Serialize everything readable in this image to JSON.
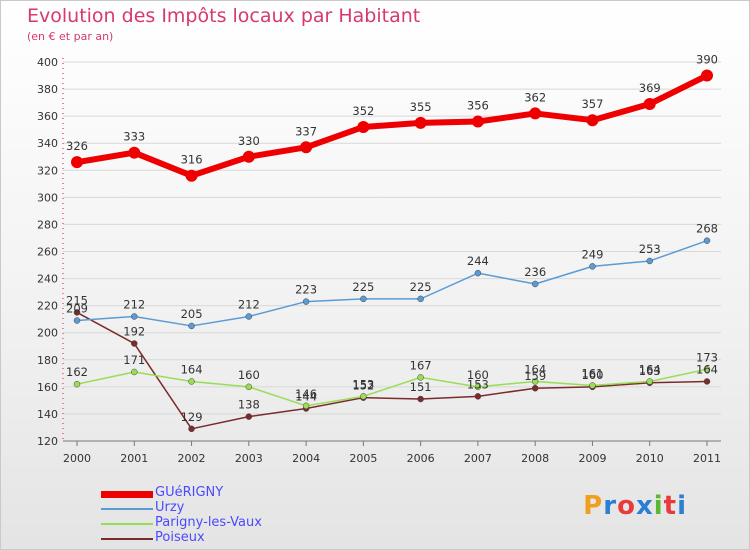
{
  "title": "Evolution des Impôts locaux par Habitant",
  "subtitle": "(en € et par an)",
  "brand": {
    "letters": [
      "P",
      "r",
      "o",
      "x",
      "i",
      "t",
      "i"
    ],
    "colors": [
      "#f0a020",
      "#2a7fd4",
      "#e83a3a",
      "#2a7fd4",
      "#5cb82e",
      "#e83a3a",
      "#2a7fd4"
    ]
  },
  "chart_data": {
    "type": "line",
    "title": "Evolution des Impôts locaux par Habitant",
    "subtitle": "(en € et par an)",
    "categories": [
      "2000",
      "2001",
      "2002",
      "2003",
      "2004",
      "2005",
      "2006",
      "2007",
      "2008",
      "2009",
      "2010",
      "2011"
    ],
    "ylim": [
      120,
      400
    ],
    "yticks": [
      "120",
      "140",
      "160",
      "180",
      "200",
      "220",
      "240",
      "260",
      "280",
      "300",
      "320",
      "340",
      "360",
      "380",
      "400"
    ],
    "grid": "horizontal",
    "legend": "bottom-left",
    "series": [
      {
        "name": "GUéRIGNY",
        "color": "#ee0000",
        "values": [
          326,
          333,
          316,
          330,
          337,
          352,
          355,
          356,
          362,
          357,
          369,
          390
        ]
      },
      {
        "name": "Urzy",
        "color": "#5b9bd5",
        "values": [
          209,
          212,
          205,
          212,
          223,
          225,
          225,
          244,
          236,
          249,
          253,
          268
        ]
      },
      {
        "name": "Parigny-les-Vaux",
        "color": "#99dd55",
        "values": [
          162,
          171,
          164,
          160,
          146,
          153,
          167,
          160,
          164,
          161,
          164,
          173
        ]
      },
      {
        "name": "Poiseux",
        "color": "#7a2b2b",
        "values": [
          215,
          192,
          129,
          138,
          144,
          152,
          151,
          153,
          159,
          160,
          163,
          164
        ]
      }
    ]
  }
}
